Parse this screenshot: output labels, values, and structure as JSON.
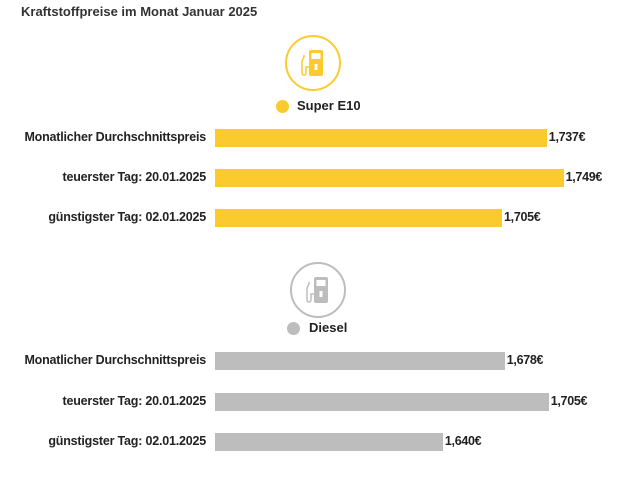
{
  "chart_data": [
    {
      "type": "bar",
      "orientation": "horizontal",
      "title": "Kraftstoffpreise im Monat Januar 2025",
      "series_name": "Super E10",
      "color": "#FBCB2E",
      "icon": "fuel-pump-icon",
      "categories": [
        "Monatlicher Durchschnittspreis",
        "teuerster Tag: 20.01.2025",
        "günstigster Tag: 02.01.2025"
      ],
      "values": [
        1.737,
        1.749,
        1.705
      ],
      "value_labels": [
        "1,737€",
        "1,749€",
        "1,705€"
      ],
      "xlim": [
        1.5,
        1.75
      ]
    },
    {
      "type": "bar",
      "orientation": "horizontal",
      "series_name": "Diesel",
      "color": "#BDBDBD",
      "icon": "fuel-pump-icon",
      "categories": [
        "Monatlicher Durchschnittspreis",
        "teuerster Tag: 20.01.2025",
        "günstigster Tag: 02.01.2025"
      ],
      "values": [
        1.678,
        1.705,
        1.64
      ],
      "value_labels": [
        "1,678€",
        "1,705€",
        "1,640€"
      ],
      "xlim": [
        1.5,
        1.715
      ]
    }
  ]
}
